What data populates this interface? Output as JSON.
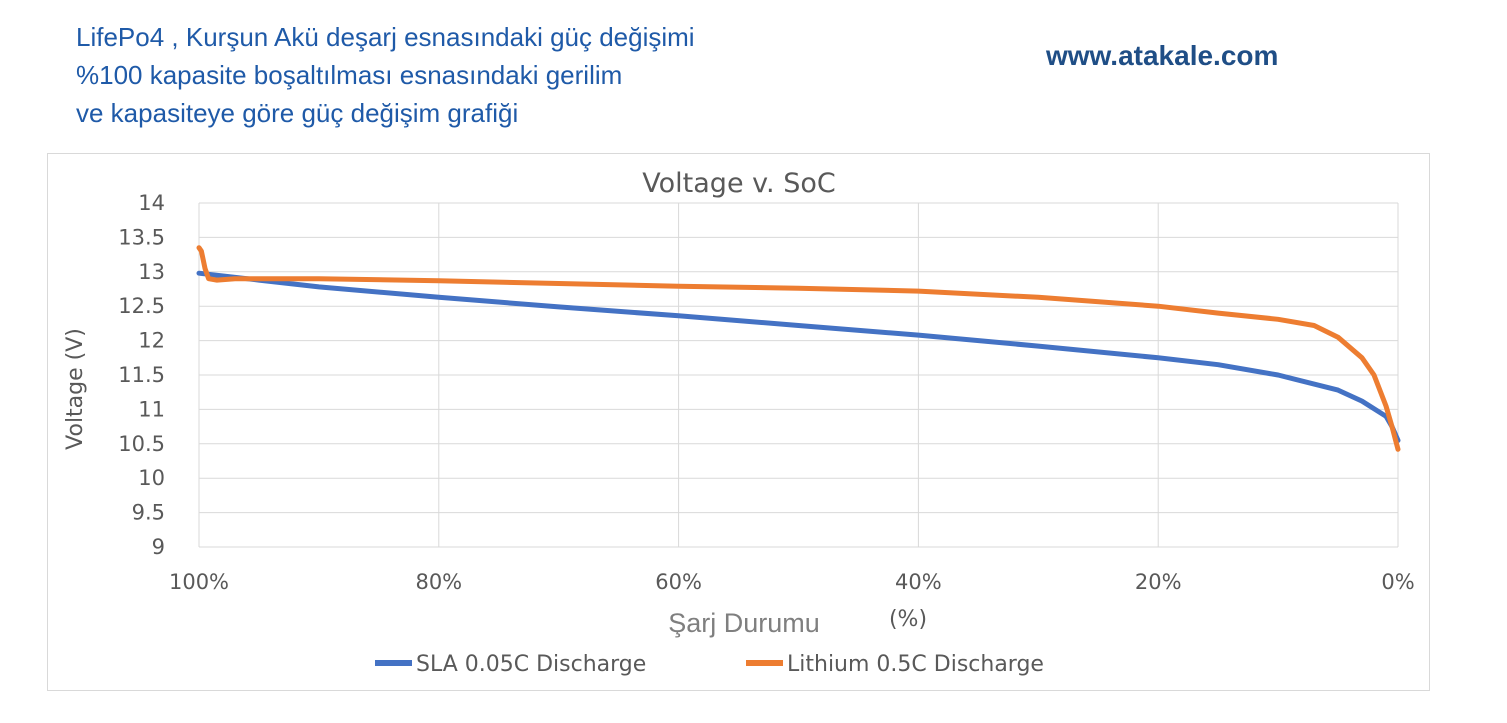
{
  "header": {
    "title_lines": [
      "LifePo4 , Kurşun Akü deşarj esnasındaki güç değişimi",
      "%100 kapasite boşaltılması esnasındaki gerilim",
      "ve kapasiteye göre güç değişim grafiği"
    ],
    "site": "www.atakale.com"
  },
  "colors": {
    "sla": "#4472c4",
    "lithium": "#ed7d31",
    "grid": "#d9d9d9",
    "text": "#595959"
  },
  "chart_data": {
    "type": "line",
    "title": "Voltage v. SoC",
    "xlabel": "Şarj Durumu",
    "xunit": "(%)",
    "ylabel": "Voltage (V)",
    "ylim": [
      9,
      14
    ],
    "xlim": [
      100,
      0
    ],
    "x_reversed": true,
    "yticks": [
      "14",
      "13.5",
      "13",
      "12.5",
      "12",
      "11.5",
      "11",
      "10.5",
      "10",
      "9.5",
      "9"
    ],
    "xticks": [
      "100%",
      "80%",
      "60%",
      "40%",
      "20%",
      "0%"
    ],
    "grid": true,
    "legend_position": "bottom",
    "series": [
      {
        "name": "SLA 0.05C Discharge",
        "color": "#4472c4",
        "x": [
          100,
          95,
          90,
          80,
          70,
          60,
          50,
          40,
          30,
          20,
          15,
          10,
          5,
          3,
          1,
          0.5,
          0
        ],
        "y": [
          12.98,
          12.88,
          12.78,
          12.63,
          12.49,
          12.36,
          12.22,
          12.08,
          11.92,
          11.75,
          11.65,
          11.5,
          11.28,
          11.12,
          10.9,
          10.75,
          10.55
        ]
      },
      {
        "name": "Lithium 0.5C Discharge",
        "color": "#ed7d31",
        "x": [
          100,
          99.8,
          99.5,
          99.2,
          98.5,
          97,
          90,
          80,
          70,
          60,
          50,
          40,
          30,
          20,
          15,
          10,
          7,
          5,
          3,
          2,
          1,
          0.5,
          0
        ],
        "y": [
          13.35,
          13.3,
          13.05,
          12.9,
          12.88,
          12.9,
          12.9,
          12.87,
          12.83,
          12.79,
          12.76,
          12.72,
          12.63,
          12.5,
          12.4,
          12.31,
          12.22,
          12.05,
          11.75,
          11.5,
          11.05,
          10.75,
          10.42
        ]
      }
    ]
  }
}
